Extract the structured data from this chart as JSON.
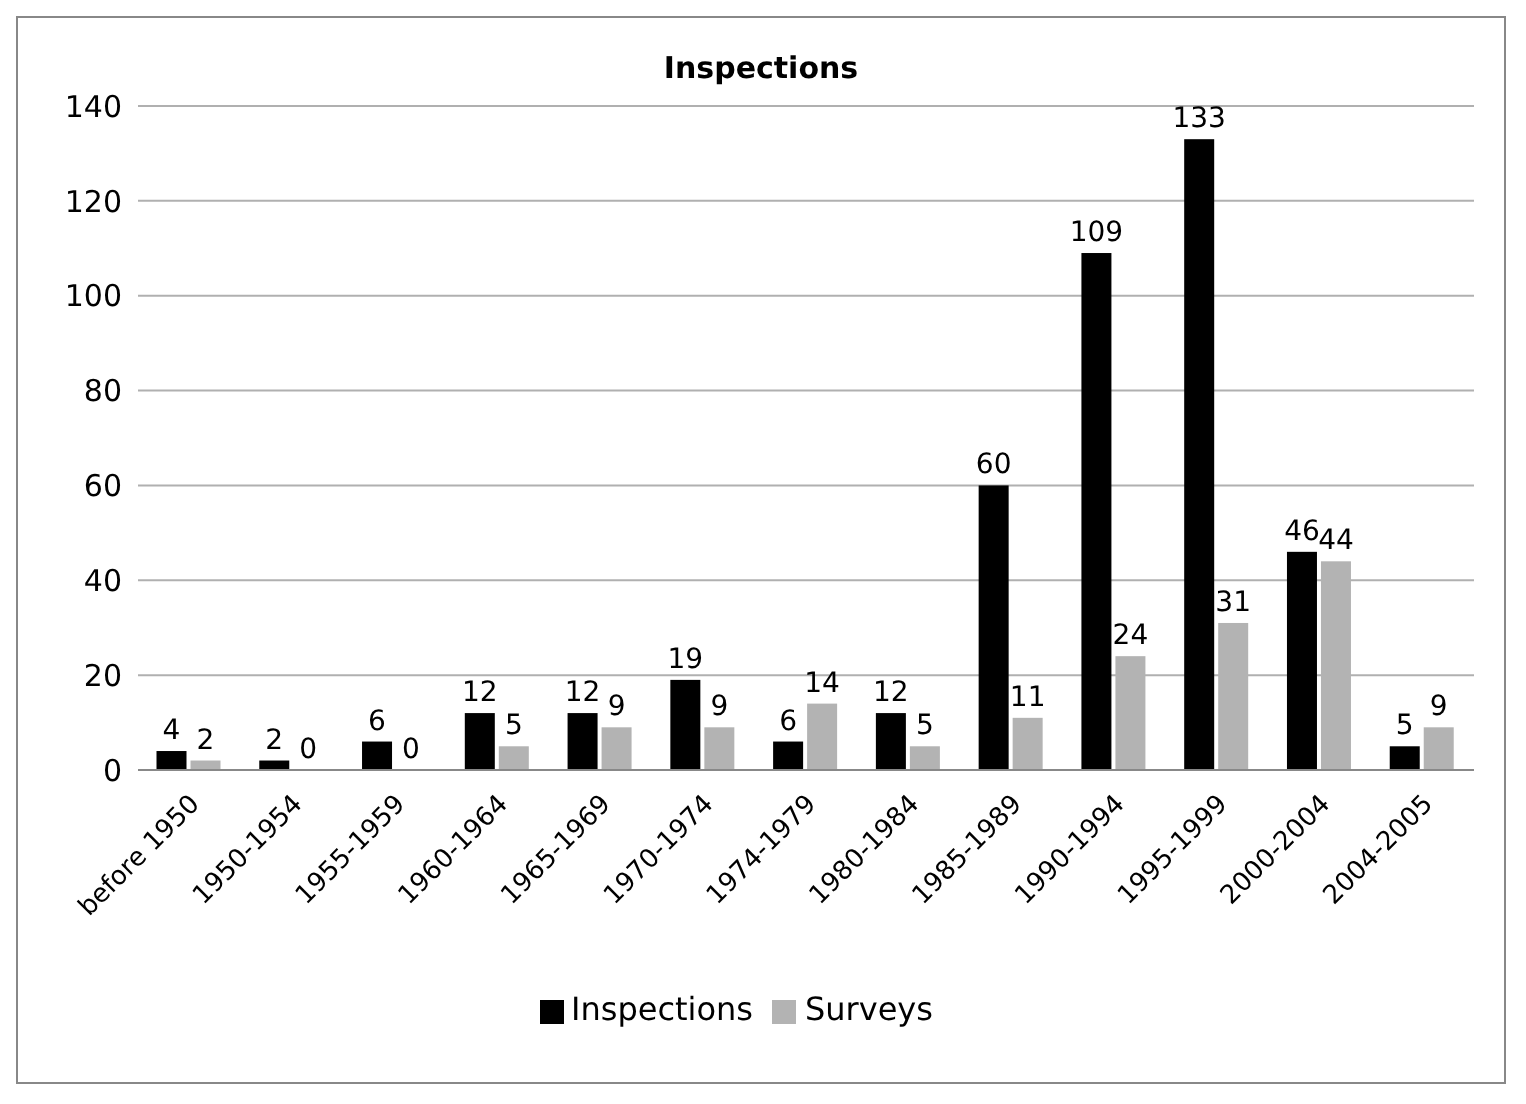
{
  "chart_data": {
    "type": "bar",
    "title": "Inspections",
    "categories": [
      "before 1950",
      "1950-1954",
      "1955-1959",
      "1960-1964",
      "1965-1969",
      "1970-1974",
      "1974-1979",
      "1980-1984",
      "1985-1989",
      "1990-1994",
      "1995-1999",
      "2000-2004",
      "2004-2005"
    ],
    "series": [
      {
        "name": "Inspections",
        "color": "#000000",
        "values": [
          4,
          2,
          6,
          12,
          12,
          19,
          6,
          12,
          60,
          109,
          133,
          46,
          5
        ]
      },
      {
        "name": "Surveys",
        "color": "#b3b3b3",
        "values": [
          2,
          0,
          0,
          5,
          9,
          9,
          14,
          5,
          11,
          24,
          31,
          44,
          9
        ]
      }
    ],
    "ylim": [
      0,
      140
    ],
    "yticks": [
      0,
      20,
      40,
      60,
      80,
      100,
      120,
      140
    ],
    "grid": "y",
    "legend": "bottom",
    "data_labels": true
  }
}
